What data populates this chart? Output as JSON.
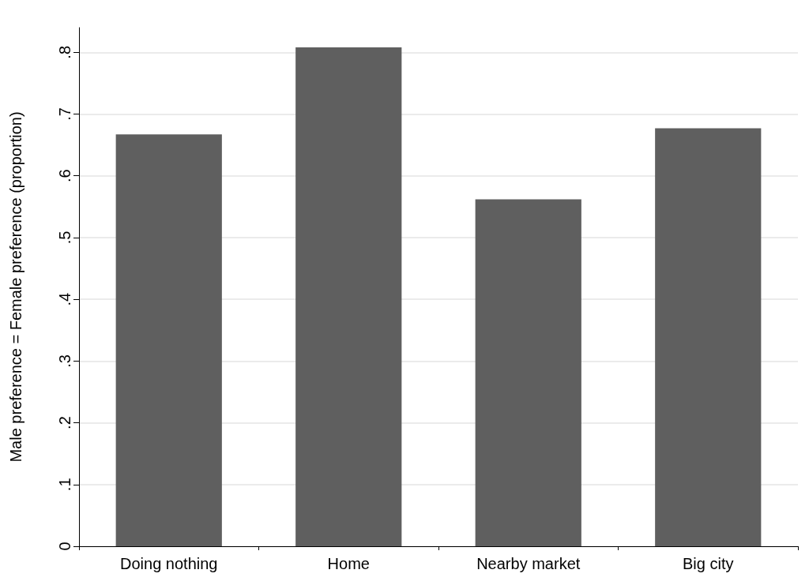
{
  "chart_data": {
    "type": "bar",
    "ylabel": "Male preference = Female preference (proportion)",
    "categories": [
      "Doing nothing",
      "Home",
      "Nearby market",
      "Big city"
    ],
    "values": [
      0.667,
      0.808,
      0.562,
      0.677
    ],
    "color": "#5f5f5f",
    "ylim": [
      0,
      0.84
    ],
    "yticks": [
      0,
      {
        "value": 0.1,
        "label": ".1"
      },
      {
        "value": 0.2,
        "label": ".2"
      },
      {
        "value": 0.3,
        "label": ".3"
      },
      {
        "value": 0.4,
        "label": ".4"
      },
      {
        "value": 0.5,
        "label": ".5"
      },
      {
        "value": 0.6,
        "label": ".6"
      },
      {
        "value": 0.7,
        "label": ".7"
      },
      {
        "value": 0.8,
        "label": ".8"
      }
    ],
    "grid": "y"
  }
}
